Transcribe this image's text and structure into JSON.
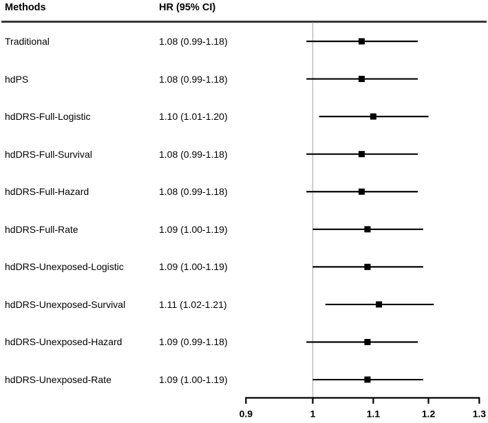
{
  "figure": {
    "header": {
      "methods_label": "Methods",
      "hr_label": "HR (95% CI)"
    }
  },
  "chart_data": {
    "type": "forest",
    "title": "",
    "columns": [
      "Methods",
      "HR (95% CI)"
    ],
    "rows": [
      {
        "method": "Traditional",
        "hr": "1.08 (0.99-1.18)",
        "est": 1.08,
        "lo": 0.99,
        "hi": 1.18
      },
      {
        "method": "hdPS",
        "hr": "1.08 (0.99-1.18)",
        "est": 1.08,
        "lo": 0.99,
        "hi": 1.18
      },
      {
        "method": "hdDRS-Full-Logistic",
        "hr": "1.10 (1.01-1.20)",
        "est": 1.1,
        "lo": 1.01,
        "hi": 1.2
      },
      {
        "method": "hdDRS-Full-Survival",
        "hr": "1.08 (0.99-1.18)",
        "est": 1.08,
        "lo": 0.99,
        "hi": 1.18
      },
      {
        "method": "hdDRS-Full-Hazard",
        "hr": "1.08 (0.99-1.18)",
        "est": 1.08,
        "lo": 0.99,
        "hi": 1.18
      },
      {
        "method": "hdDRS-Full-Rate",
        "hr": "1.09 (1.00-1.19)",
        "est": 1.09,
        "lo": 1.0,
        "hi": 1.19
      },
      {
        "method": "hdDRS-Unexposed-Logistic",
        "hr": "1.09 (1.00-1.19)",
        "est": 1.09,
        "lo": 1.0,
        "hi": 1.19
      },
      {
        "method": "hdDRS-Unexposed-Survival",
        "hr": "1.11 (1.02-1.21)",
        "est": 1.11,
        "lo": 1.02,
        "hi": 1.21
      },
      {
        "method": "hdDRS-Unexposed-Hazard",
        "hr": "1.09 (0.99-1.18)",
        "est": 1.09,
        "lo": 0.99,
        "hi": 1.18
      },
      {
        "method": "hdDRS-Unexposed-Rate",
        "hr": "1.09 (1.00-1.19)",
        "est": 1.09,
        "lo": 1.0,
        "hi": 1.19
      }
    ],
    "axis": {
      "scale": "log",
      "xlim": [
        0.9,
        1.3
      ],
      "ticks": [
        0.9,
        1,
        1.1,
        1.2,
        1.3
      ],
      "tick_labels": [
        "0.9",
        "1",
        "1.1",
        "1.2",
        "1.3"
      ],
      "ref_line": 1
    },
    "legend": null,
    "grid": false,
    "colors": {
      "marker": "#000000",
      "ci_line": "#000000",
      "ref_line": "#b9b9b9",
      "axis": "#000000",
      "header_rule": "#383838"
    }
  }
}
